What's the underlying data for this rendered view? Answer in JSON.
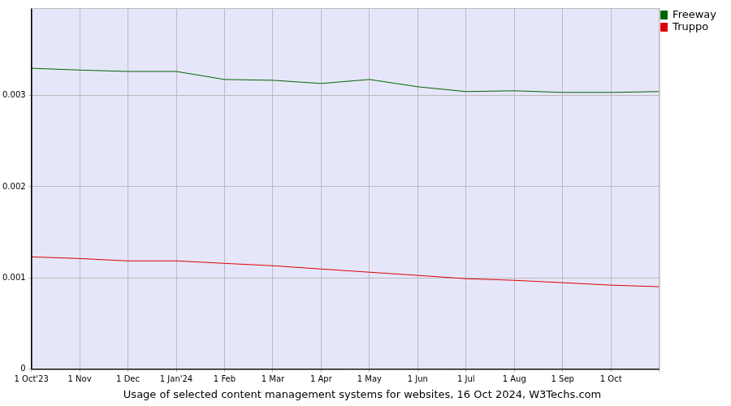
{
  "chart_data": {
    "type": "line",
    "title": "Usage of selected content management systems for websites, 16 Oct 2024, W3Techs.com",
    "categories": [
      "1 Oct'23",
      "1 Nov",
      "1 Dec",
      "1 Jan'24",
      "1 Feb",
      "1 Mar",
      "1 Apr",
      "1 May",
      "1 Jun",
      "1 Jul",
      "1 Aug",
      "1 Sep",
      "1 Oct",
      null
    ],
    "series": [
      {
        "name": "Freeway",
        "color": "#006400",
        "marker": "none",
        "line_style": "solid",
        "values": [
          0.0033,
          0.00328,
          0.003265,
          0.003265,
          0.003177,
          0.003168,
          0.003133,
          0.003177,
          0.003097,
          0.003044,
          0.003053,
          0.003035,
          0.003035,
          0.003044
        ]
      },
      {
        "name": "Truppo",
        "color": "#dd0000",
        "marker": "none",
        "line_style": "solid",
        "values": [
          0.00123,
          0.001212,
          0.001186,
          0.001186,
          0.001159,
          0.001133,
          0.001097,
          0.001062,
          0.001027,
          0.000991,
          0.000973,
          0.000947,
          0.00092,
          0.000903
        ]
      }
    ],
    "ylim": [
      0,
      0.00396
    ],
    "yticks": [
      0,
      0.001,
      0.002,
      0.003
    ],
    "grid": true,
    "legend": "top-right"
  }
}
